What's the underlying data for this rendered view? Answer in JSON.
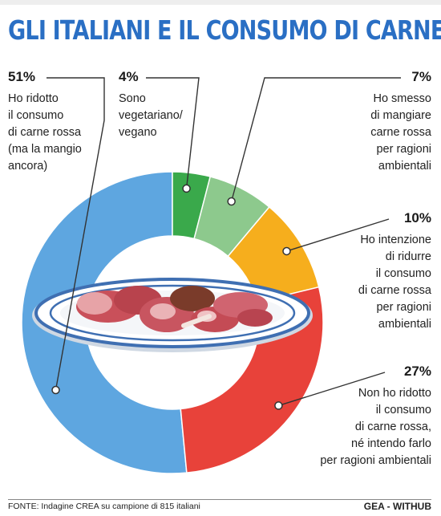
{
  "title": "GLI ITALIANI E IL CONSUMO DI CARNE",
  "footer": {
    "source": "FONTE: Indagine CREA su campione di 815 italiani",
    "credit": "GEA - WITHUB"
  },
  "colors": {
    "title": "#2a6fc4",
    "slices": [
      "#5ea6e0",
      "#3aa94b",
      "#8dc98d",
      "#f6ae1d",
      "#e8423a"
    ]
  },
  "chart_data": {
    "type": "pie",
    "variant": "donut",
    "unit": "%",
    "slices": [
      {
        "value": 51,
        "label": "51%",
        "text": "Ho ridotto\nil consumo\ndi carne rossa\n(ma la mangio\nancora)",
        "color": "#5ea6e0"
      },
      {
        "value": 4,
        "label": "4%",
        "text": "Sono\nvegetariano/\nvegano",
        "color": "#3aa94b"
      },
      {
        "value": 7,
        "label": "7%",
        "text": "Ho smesso\ndi mangiare\ncarne rossa\nper ragioni\nambientali",
        "color": "#8dc98d"
      },
      {
        "value": 10,
        "label": "10%",
        "text": "Ho intenzione\ndi ridurre\nil consumo\ndi carne rossa\nper ragioni\nambientali",
        "color": "#f6ae1d"
      },
      {
        "value": 27,
        "label": "27%",
        "text": "Non ho ridotto\nil consumo\ndi carne rossa,\nné intendo farlo\nper ragioni ambientali",
        "color": "#e8423a"
      }
    ],
    "center_illustration": "plate-of-meat-icon"
  }
}
